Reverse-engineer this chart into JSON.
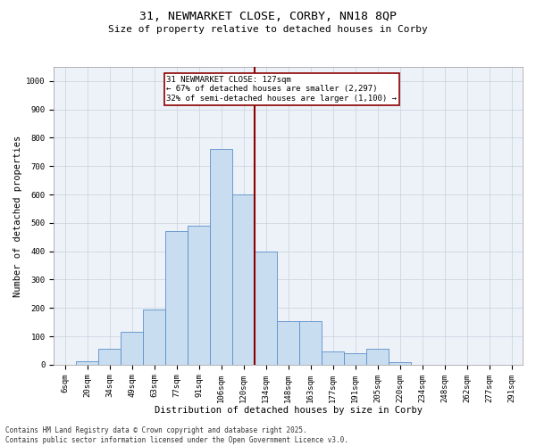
{
  "title_line1": "31, NEWMARKET CLOSE, CORBY, NN18 8QP",
  "title_line2": "Size of property relative to detached houses in Corby",
  "xlabel": "Distribution of detached houses by size in Corby",
  "ylabel": "Number of detached properties",
  "bin_labels": [
    "6sqm",
    "20sqm",
    "34sqm",
    "49sqm",
    "63sqm",
    "77sqm",
    "91sqm",
    "106sqm",
    "120sqm",
    "134sqm",
    "148sqm",
    "163sqm",
    "177sqm",
    "191sqm",
    "205sqm",
    "220sqm",
    "234sqm",
    "248sqm",
    "262sqm",
    "277sqm",
    "291sqm"
  ],
  "bar_values": [
    0,
    12,
    55,
    115,
    195,
    470,
    490,
    760,
    600,
    400,
    155,
    155,
    48,
    42,
    55,
    10,
    0,
    0,
    0,
    0,
    0
  ],
  "bar_color": "#c9ddf0",
  "bar_edge_color": "#5b8fc9",
  "grid_color": "#c8d0dc",
  "bg_color": "#edf2f9",
  "vline_color": "#8b0000",
  "annotation_text": "31 NEWMARKET CLOSE: 127sqm\n← 67% of detached houses are smaller (2,297)\n32% of semi-detached houses are larger (1,100) →",
  "annotation_box_color": "#8b0000",
  "footnote": "Contains HM Land Registry data © Crown copyright and database right 2025.\nContains public sector information licensed under the Open Government Licence v3.0.",
  "ylim": [
    0,
    1050
  ],
  "yticks": [
    0,
    100,
    200,
    300,
    400,
    500,
    600,
    700,
    800,
    900,
    1000
  ],
  "title1_fontsize": 9.5,
  "title2_fontsize": 8.0,
  "ylabel_fontsize": 7.5,
  "xlabel_fontsize": 7.5,
  "tick_fontsize": 6.5,
  "annot_fontsize": 6.5,
  "footnote_fontsize": 5.5
}
